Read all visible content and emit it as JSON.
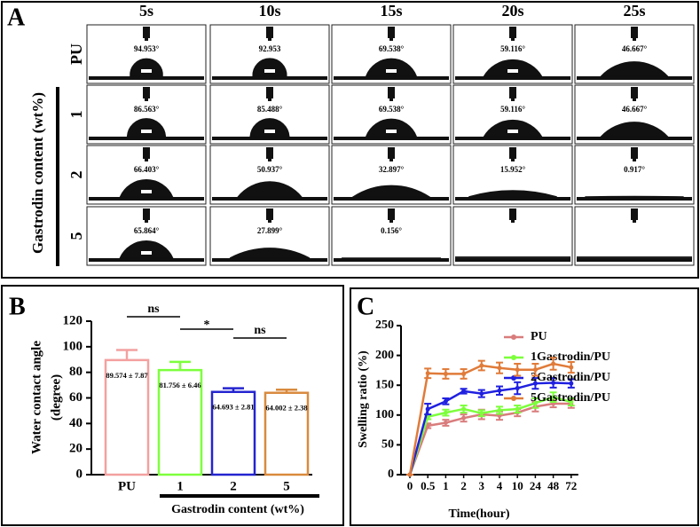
{
  "panel_a": {
    "label": "A",
    "columns": [
      "5s",
      "10s",
      "15s",
      "20s",
      "25s"
    ],
    "axis_title": "Gastrodin content (wt%)",
    "rows": [
      {
        "label": "PU",
        "angles": [
          "94.953°",
          "92.953",
          "69.538°",
          "59.116°",
          "46.667°"
        ]
      },
      {
        "label": "1",
        "angles": [
          "86.563°",
          "85.488°",
          "69.538°",
          "59.116°",
          "46.667°"
        ]
      },
      {
        "label": "2",
        "angles": [
          "66.403°",
          "50.937°",
          "32.897°",
          "15.952°",
          "0.917°"
        ]
      },
      {
        "label": "5",
        "angles": [
          "65.864°",
          "27.899°",
          "0.156°"
        ]
      }
    ]
  },
  "chart_data": [
    {
      "type": "bar",
      "panel_label": "B",
      "y_label": [
        "Water contact angle",
        "(degree)"
      ],
      "categories": [
        "PU",
        "1",
        "2",
        "5"
      ],
      "values": [
        89.574,
        81.756,
        64.693,
        64.002
      ],
      "errors": [
        7.87,
        6.46,
        2.81,
        2.38
      ],
      "value_labels": [
        "89.574 ± 7.87",
        "81.756 ± 6.46",
        "64.693 ± 2.81",
        "64.002 ± 2.38"
      ],
      "colors": [
        "#f4a0a0",
        "#7dff3c",
        "#2424d0",
        "#d98a3e"
      ],
      "ylim": [
        0,
        120
      ],
      "yticks": [
        0,
        20,
        40,
        60,
        80,
        100,
        120
      ],
      "group_label": "Gastrodin content (wt%)",
      "annotations": [
        "ns",
        "*",
        "ns"
      ]
    },
    {
      "type": "line",
      "panel_label": "C",
      "y_label": "Swelling ratio (%)",
      "x_label": "Time(hour)",
      "categories": [
        "0",
        "0.5",
        "1",
        "2",
        "3",
        "4",
        "10",
        "24",
        "48",
        "72"
      ],
      "series": [
        {
          "name": "PU",
          "color": "#d97c7c",
          "values": [
            0,
            82,
            87,
            95,
            101,
            99,
            104,
            114,
            119,
            119
          ],
          "errors": [
            0,
            4,
            5,
            6,
            8,
            7,
            6,
            8,
            6,
            7
          ]
        },
        {
          "name": "1Gastrodin/PU",
          "color": "#7dff3c",
          "values": [
            0,
            97,
            104,
            110,
            103,
            108,
            110,
            120,
            130,
            122
          ],
          "errors": [
            0,
            4,
            5,
            6,
            5,
            6,
            6,
            8,
            8,
            6
          ]
        },
        {
          "name": "2Gastrodin/PU",
          "color": "#2020e0",
          "values": [
            0,
            110,
            123,
            140,
            136,
            141,
            145,
            153,
            154,
            153
          ],
          "errors": [
            0,
            9,
            5,
            4,
            6,
            7,
            10,
            9,
            8,
            7
          ]
        },
        {
          "name": "5Gastrodin/PU",
          "color": "#e07b39",
          "values": [
            0,
            170,
            169,
            169,
            183,
            179,
            176,
            176,
            186,
            180
          ],
          "errors": [
            0,
            8,
            8,
            8,
            8,
            9,
            10,
            10,
            10,
            9
          ]
        }
      ],
      "ylim": [
        0,
        250
      ],
      "yticks": [
        0,
        50,
        100,
        150,
        200,
        250
      ],
      "legend": "right"
    }
  ]
}
